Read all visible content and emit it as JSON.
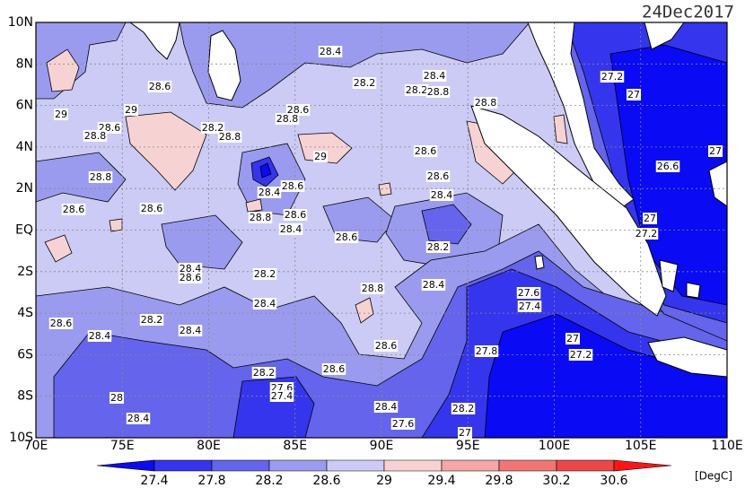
{
  "title": "24Dec2017",
  "lon_ticks": [
    "70E",
    "75E",
    "80E",
    "85E",
    "90E",
    "95E",
    "100E",
    "105E",
    "110E"
  ],
  "lat_ticks": [
    "10N",
    "8N",
    "6N",
    "4N",
    "2N",
    "EQ",
    "2S",
    "4S",
    "6S",
    "8S",
    "10S"
  ],
  "colorbar": {
    "levels": [
      27.4,
      27.8,
      28.2,
      28.6,
      29,
      29.4,
      29.8,
      30.2,
      30.6
    ],
    "colors": [
      "#0a0af5",
      "#3535ee",
      "#6464ec",
      "#9a9bee",
      "#cbcbf5",
      "#f7d2d2",
      "#f5a6a6",
      "#f07676",
      "#ee4747",
      "#ff1515"
    ],
    "unit": "[DegC]"
  },
  "contour_labels": [
    28.4,
    28.6,
    28.2,
    28.4,
    28.2,
    28.8,
    27.2,
    27,
    29,
    29,
    28.6,
    28.8,
    28.2,
    28.8,
    28.6,
    28.8,
    28.8,
    29,
    28.6,
    27,
    26.6,
    28.8,
    28.6,
    28.6,
    28.4,
    28.4,
    28.6,
    28.6,
    28.8,
    28.6,
    28.4,
    27,
    27.2,
    28.6,
    28.2,
    28.4,
    28.6,
    28.2,
    28.4,
    28.8,
    27.6,
    27.4,
    28.4,
    28.2,
    28.6,
    28.4,
    28.4,
    27,
    27.2,
    28.6,
    27.8,
    28.6,
    28.2,
    28,
    27.6,
    27.4,
    28.4,
    28.2,
    27.6,
    28.4,
    27
  ]
}
